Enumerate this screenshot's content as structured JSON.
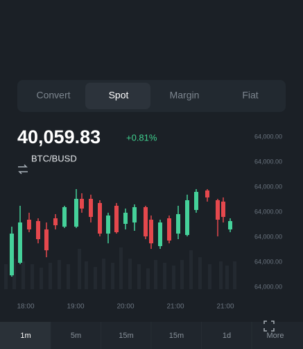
{
  "tabs": {
    "items": [
      "Convert",
      "Spot",
      "Margin",
      "Fiat"
    ],
    "selected": 1
  },
  "ticker": {
    "price": "40,059.83",
    "change": "+0.81%",
    "pair": "BTC/BUSD"
  },
  "chart": {
    "y_axis_labels": [
      "64,000.00",
      "64,000.00",
      "64,000.00",
      "64,000.00",
      "64,000.00",
      "64,000.00",
      "64,000.00"
    ],
    "x_axis_labels": [
      "18:00",
      "19:00",
      "20:00",
      "21:00",
      "21:00"
    ]
  },
  "intervals": {
    "items": [
      "1m",
      "5m",
      "15m",
      "15m",
      "1d"
    ],
    "selected": 0,
    "more": "More"
  }
}
